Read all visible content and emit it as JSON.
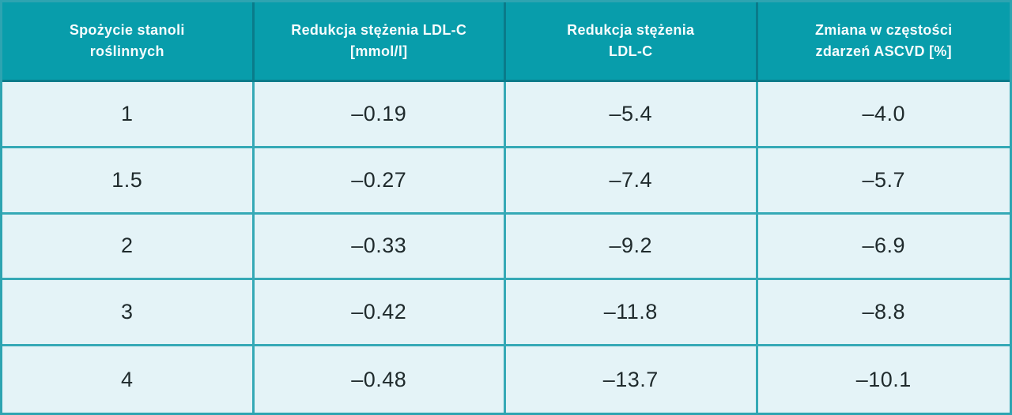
{
  "colors": {
    "header_bg": "#089dab",
    "header_divider": "#0a7b8a",
    "header_text": "#f7fcfd",
    "cell_bg": "#e4f3f7",
    "grid_line": "#35a9b6",
    "cell_text": "#1f2a2c"
  },
  "table": {
    "headers": [
      {
        "lines": [
          "Spożycie stanoli",
          "roślinnych"
        ]
      },
      {
        "lines": [
          "Redukcja stężenia LDL-C",
          "[mmol/l]"
        ]
      },
      {
        "lines": [
          "Redukcja stężenia",
          "LDL-C"
        ]
      },
      {
        "lines": [
          "Zmiana w częstości",
          "zdarzeń ASCVD [%]"
        ]
      }
    ],
    "rows": [
      [
        "1",
        "–0.19",
        "–5.4",
        "–4.0"
      ],
      [
        "1.5",
        "–0.27",
        "–7.4",
        "–5.7"
      ],
      [
        "2",
        "–0.33",
        "–9.2",
        "–6.9"
      ],
      [
        "3",
        "–0.42",
        "–11.8",
        "–8.8"
      ],
      [
        "4",
        "–0.48",
        "–13.7",
        "–10.1"
      ]
    ]
  },
  "chart_data": {
    "type": "table",
    "columns": [
      "Spożycie stanoli roślinnych",
      "Redukcja stężenia LDL-C [mmol/l]",
      "Redukcja stężenia LDL-C",
      "Zmiana w częstości zdarzeń ASCVD [%]"
    ],
    "rows": [
      [
        1,
        -0.19,
        -5.4,
        -4.0
      ],
      [
        1.5,
        -0.27,
        -7.4,
        -5.7
      ],
      [
        2,
        -0.33,
        -9.2,
        -6.9
      ],
      [
        3,
        -0.42,
        -11.8,
        -8.8
      ],
      [
        4,
        -0.48,
        -13.7,
        -10.1
      ]
    ]
  }
}
